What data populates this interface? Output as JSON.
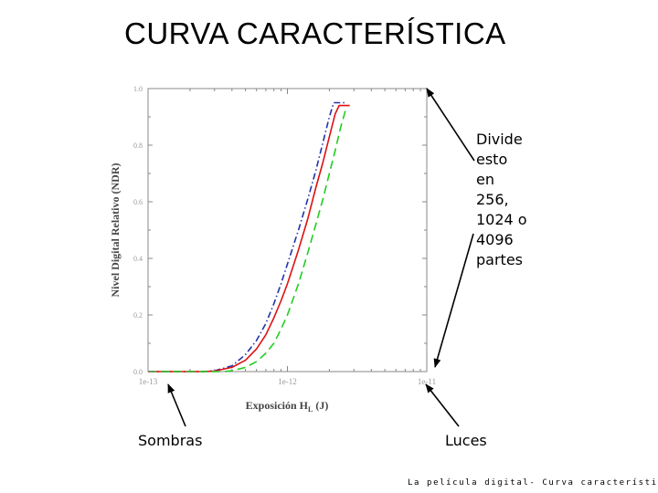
{
  "slide": {
    "title": "CURVA CARACTERÍSTICA",
    "callout_right": [
      "Divide",
      "esto",
      "en",
      "256,",
      "1024 o",
      "4096",
      "partes"
    ],
    "label_shadows": "Sombras",
    "label_highlights": "Luces",
    "footer": "La película digital- Curva característica"
  },
  "colors": {
    "series_blue": "#2233aa",
    "series_red": "#dd1111",
    "series_green": "#22cc22",
    "axis": "#888888",
    "tick_text": "#999999"
  },
  "chart_data": {
    "type": "line",
    "xscale": "log",
    "xlim": [
      1e-13,
      1e-11
    ],
    "ylim": [
      0,
      1.0
    ],
    "xlabel": "Exposición H",
    "xlabel_subscript": "L",
    "xlabel_unit": "(J)",
    "ylabel": "Nivel Digital Relativo (NDR)",
    "x_tick_labels": [
      "1e-13",
      "1e-12",
      "1e-11"
    ],
    "x_ticks": [
      1e-13,
      1e-12,
      1e-11
    ],
    "y_tick_labels": [
      "0.0",
      "0.2",
      "0.4",
      "0.6",
      "0.8",
      "1.0"
    ],
    "y_ticks": [
      0.0,
      0.2,
      0.4,
      0.6,
      0.8,
      1.0
    ],
    "grid": false,
    "series": [
      {
        "color": "#2233aa",
        "style": "dashdot",
        "points": [
          [
            1e-13,
            0.0
          ],
          [
            2.5e-13,
            0.0
          ],
          [
            3e-13,
            0.003
          ],
          [
            4e-13,
            0.02
          ],
          [
            5e-13,
            0.06
          ],
          [
            6e-13,
            0.11
          ],
          [
            7e-13,
            0.17
          ],
          [
            8e-13,
            0.24
          ],
          [
            9e-13,
            0.31
          ],
          [
            1e-12,
            0.38
          ],
          [
            1.2e-12,
            0.5
          ],
          [
            1.4e-12,
            0.61
          ],
          [
            1.6e-12,
            0.71
          ],
          [
            1.8e-12,
            0.81
          ],
          [
            2e-12,
            0.9
          ],
          [
            2.15e-12,
            0.95
          ],
          [
            2.6e-12,
            0.95
          ]
        ]
      },
      {
        "color": "#dd1111",
        "style": "solid",
        "points": [
          [
            1e-13,
            0.0
          ],
          [
            2.5e-13,
            0.0
          ],
          [
            3e-13,
            0.002
          ],
          [
            4e-13,
            0.015
          ],
          [
            5e-13,
            0.04
          ],
          [
            6e-13,
            0.08
          ],
          [
            7e-13,
            0.13
          ],
          [
            8e-13,
            0.19
          ],
          [
            9e-13,
            0.25
          ],
          [
            1e-12,
            0.31
          ],
          [
            1.2e-12,
            0.43
          ],
          [
            1.4e-12,
            0.54
          ],
          [
            1.6e-12,
            0.65
          ],
          [
            1.8e-12,
            0.74
          ],
          [
            2e-12,
            0.83
          ],
          [
            2.2e-12,
            0.91
          ],
          [
            2.35e-12,
            0.94
          ],
          [
            2.8e-12,
            0.94
          ]
        ]
      },
      {
        "color": "#22cc22",
        "style": "dashed",
        "points": [
          [
            1e-13,
            0.0
          ],
          [
            3.5e-13,
            0.0
          ],
          [
            4e-13,
            0.003
          ],
          [
            5e-13,
            0.015
          ],
          [
            6e-13,
            0.035
          ],
          [
            7e-13,
            0.065
          ],
          [
            8e-13,
            0.1
          ],
          [
            9e-13,
            0.15
          ],
          [
            1e-12,
            0.2
          ],
          [
            1.2e-12,
            0.31
          ],
          [
            1.4e-12,
            0.42
          ],
          [
            1.6e-12,
            0.52
          ],
          [
            1.8e-12,
            0.61
          ],
          [
            2e-12,
            0.7
          ],
          [
            2.2e-12,
            0.78
          ],
          [
            2.4e-12,
            0.86
          ],
          [
            2.6e-12,
            0.92
          ],
          [
            2.8e-12,
            0.92
          ]
        ]
      }
    ]
  }
}
